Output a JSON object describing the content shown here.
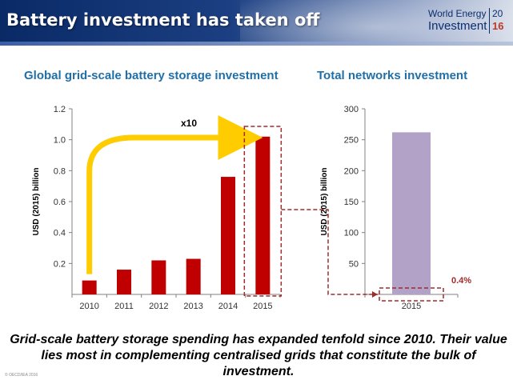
{
  "header": {
    "title": "Battery investment has taken off",
    "logo": {
      "line1": "World Energy",
      "line2": "Investment",
      "year_top": "20",
      "year_bottom": "16"
    }
  },
  "bottom_text": "Grid-scale battery storage spending has expanded tenfold since 2010. Their value lies most in complementing centralised grids that constitute the bulk of investment.",
  "copyright": "© OECD/IEA 2016",
  "colors": {
    "bar_red": "#c00000",
    "bar_purple": "#b3a2c7",
    "arrow_yellow": "#ffcc00",
    "title_blue": "#1f6fa8",
    "dash_red": "#a12a2a"
  },
  "chart_data": [
    {
      "type": "bar",
      "title": "Global grid-scale battery storage investment",
      "ylabel": "USD (2015) billion",
      "categories": [
        "2010",
        "2011",
        "2012",
        "2013",
        "2014",
        "2015"
      ],
      "values": [
        0.09,
        0.16,
        0.22,
        0.23,
        0.76,
        1.02
      ],
      "ylim": [
        0,
        1.2
      ],
      "yticks": [
        "0.2",
        "0.4",
        "0.6",
        "0.8",
        "1.0",
        "1.2"
      ],
      "ytick_values": [
        0.2,
        0.4,
        0.6,
        0.8,
        1.0,
        1.2
      ],
      "annotation": "x10",
      "grid": false
    },
    {
      "type": "bar",
      "title": "Total networks investment",
      "ylabel": "USD (2015) billion",
      "categories": [
        "2015"
      ],
      "values": [
        262
      ],
      "ylim": [
        0,
        300
      ],
      "yticks": [
        "50",
        "100",
        "150",
        "200",
        "250",
        "300"
      ],
      "ytick_values": [
        50,
        100,
        150,
        200,
        250,
        300
      ],
      "annotation": "0.4%",
      "grid": false
    }
  ]
}
